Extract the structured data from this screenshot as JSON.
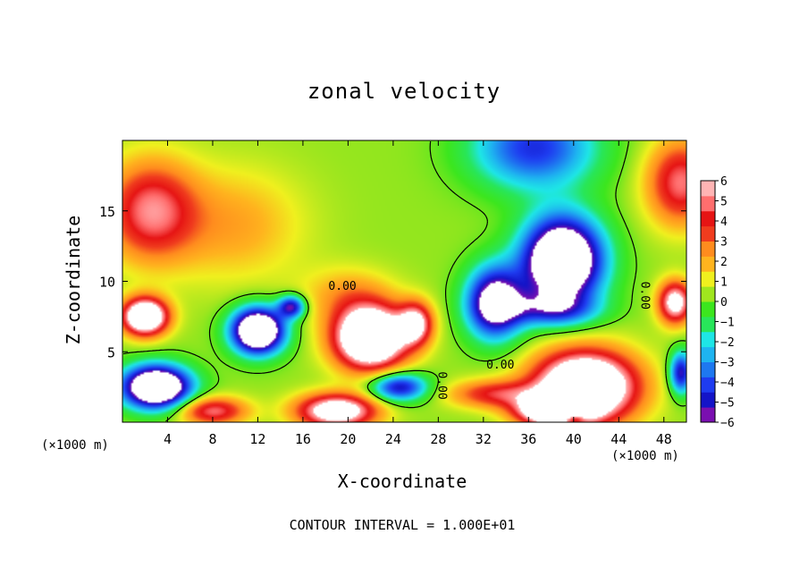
{
  "chart_data": {
    "type": "heatmap",
    "title": "zonal velocity",
    "xlabel": "X-coordinate",
    "ylabel": "Z-coordinate",
    "x_unit_label": "(×1000 m)",
    "footer": "CONTOUR INTERVAL = 1.000E+01",
    "xlim": [
      0,
      50
    ],
    "ylim": [
      0,
      20
    ],
    "x_ticks": [
      "4",
      "8",
      "12",
      "16",
      "20",
      "24",
      "28",
      "32",
      "36",
      "40",
      "44",
      "48"
    ],
    "y_ticks": [
      "5",
      "10",
      "15"
    ],
    "colorbar": {
      "ticks": [
        "6",
        "5",
        "4",
        "3",
        "2",
        "1",
        "0",
        "−1",
        "−2",
        "−3",
        "−4",
        "−5",
        "−6"
      ],
      "range": [
        -6,
        6
      ],
      "colors": [
        "#7a0fb0",
        "#1414c8",
        "#1e3cf0",
        "#1e78f0",
        "#1eb4f0",
        "#1ee6e6",
        "#28e65a",
        "#3ce61e",
        "#a0e61e",
        "#f0f01e",
        "#ffb41e",
        "#ff8c1e",
        "#f03c1e",
        "#e61414",
        "#ff6e6e",
        "#ffb4b4"
      ]
    },
    "contour_labels": [
      "0.00",
      "0.00",
      "0.00",
      "0.00"
    ],
    "field_blobs": [
      {
        "x": 2.5,
        "z": 15.0,
        "v": 5,
        "sx": 4.0,
        "sz": 3.5
      },
      {
        "x": 49.5,
        "z": 17.0,
        "v": 5,
        "sx": 3.0,
        "sz": 3.0
      },
      {
        "x": 36.5,
        "z": 19.5,
        "v": -5,
        "sx": 5.5,
        "sz": 3.0
      },
      {
        "x": 39.0,
        "z": 11.5,
        "v": -11,
        "sx": 3.5,
        "sz": 3.0
      },
      {
        "x": 33.0,
        "z": 8.5,
        "v": -8,
        "sx": 2.5,
        "sz": 2.5
      },
      {
        "x": 38.0,
        "z": 8.0,
        "v": -4,
        "sx": 4.0,
        "sz": 1.2
      },
      {
        "x": 22.0,
        "z": 6.0,
        "v": 11,
        "sx": 3.2,
        "sz": 2.2
      },
      {
        "x": 26.0,
        "z": 7.0,
        "v": 6,
        "sx": 1.5,
        "sz": 1.5
      },
      {
        "x": 12.0,
        "z": 6.5,
        "v": -11,
        "sx": 2.3,
        "sz": 1.6
      },
      {
        "x": 15.0,
        "z": 8.2,
        "v": -6,
        "sx": 1.2,
        "sz": 0.8
      },
      {
        "x": 3.0,
        "z": 2.5,
        "v": -11,
        "sx": 3.0,
        "sz": 1.5
      },
      {
        "x": 2.0,
        "z": 7.5,
        "v": 10,
        "sx": 2.0,
        "sz": 1.3
      },
      {
        "x": 41.0,
        "z": 2.5,
        "v": 11,
        "sx": 4.5,
        "sz": 2.5
      },
      {
        "x": 38.0,
        "z": 0.8,
        "v": 8,
        "sx": 3.0,
        "sz": 1.0
      },
      {
        "x": 19.0,
        "z": 0.8,
        "v": 8,
        "sx": 3.5,
        "sz": 1.2
      },
      {
        "x": 8.0,
        "z": 0.8,
        "v": 5,
        "sx": 3.0,
        "sz": 1.0
      },
      {
        "x": 24.5,
        "z": 2.5,
        "v": -6,
        "sx": 2.5,
        "sz": 1.0
      },
      {
        "x": 33.0,
        "z": 2.0,
        "v": 4,
        "sx": 4.0,
        "sz": 1.0
      },
      {
        "x": 49.0,
        "z": 8.5,
        "v": 7,
        "sx": 1.5,
        "sz": 1.5
      },
      {
        "x": 49.5,
        "z": 3.5,
        "v": -6,
        "sx": 1.0,
        "sz": 1.5
      },
      {
        "x": 40.0,
        "z": 0.3,
        "v": -4,
        "sx": 1.0,
        "sz": 0.4
      },
      {
        "x": 10.0,
        "z": 14.0,
        "v": 2,
        "sx": 6.0,
        "sz": 4.0
      },
      {
        "x": 20.0,
        "z": 9.0,
        "v": 2,
        "sx": 4.0,
        "sz": 2.0
      }
    ]
  }
}
